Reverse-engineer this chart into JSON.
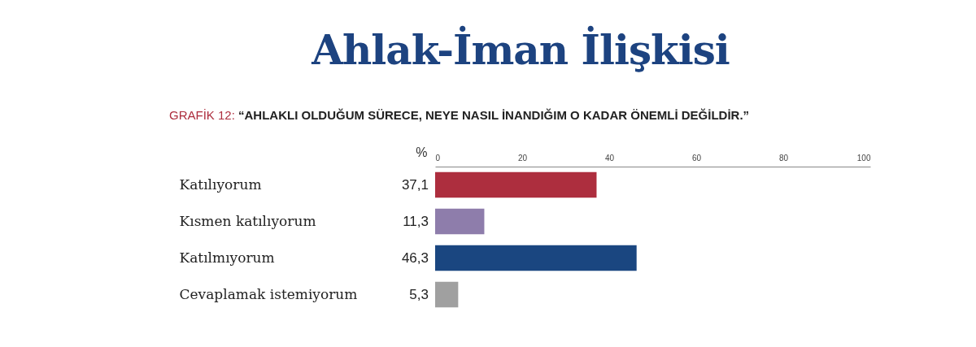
{
  "chart_data": {
    "type": "bar",
    "orientation": "horizontal",
    "title": "Ahlak-İman İlişkisi",
    "subtitle": "GRAFİK 12: “AHLAKLI OLDUĞUM SÜRECE, NEYE NASIL İNANDIĞIM O KADAR ÖNEMLİ DEĞİLDİR.”",
    "ylabel": "%",
    "categories": [
      "Katılıyorum",
      "Kısmen katılıyorum",
      "Katılmıyorum",
      "Cevaplamak istemiyorum"
    ],
    "values": [
      37.1,
      11.3,
      46.3,
      5.3
    ],
    "colors": [
      "#ad2e3e",
      "#8e7dab",
      "#1a4680",
      "#a0a0a0"
    ],
    "value_labels": [
      "37,1",
      "11,3",
      "46,3",
      "5,3"
    ],
    "xlim": [
      0,
      100
    ],
    "xticks": [
      0,
      20,
      40,
      60,
      80,
      100
    ],
    "grid": false
  }
}
